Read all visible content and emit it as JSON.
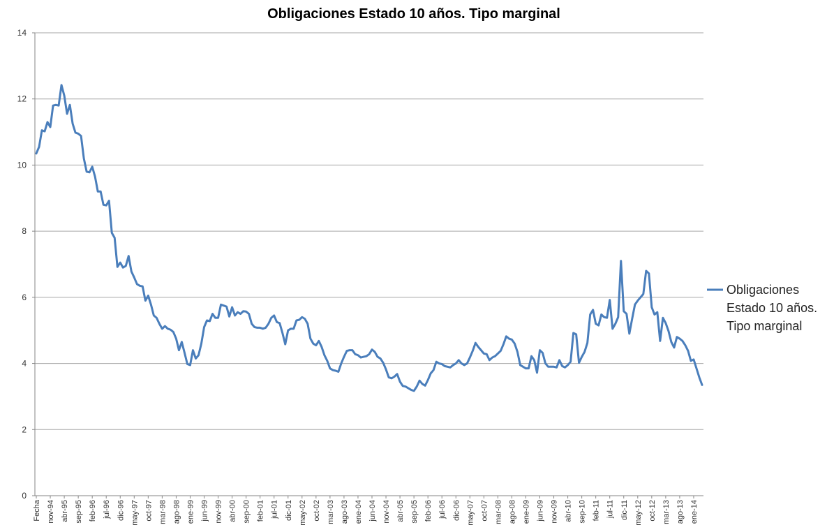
{
  "chart_data": {
    "type": "line",
    "title": "Obligaciones Estado 10 años. Tipo marginal",
    "xlabel": "",
    "ylabel": "",
    "ylim": [
      0,
      14
    ],
    "yticks": [
      "0",
      "2",
      "4",
      "6",
      "8",
      "10",
      "12",
      "14"
    ],
    "grid": true,
    "legend_position": "right",
    "line_color": "#4a7ebb",
    "x_tick_labels": [
      "Fecha",
      "nov-94",
      "abr-95",
      "sep-95",
      "feb-96",
      "jul-96",
      "dic-96",
      "may-97",
      "oct-97",
      "mar-98",
      "ago-98",
      "ene-99",
      "jun-99",
      "nov-99",
      "abr-00",
      "sep-00",
      "feb-01",
      "jul-01",
      "dic-01",
      "may-02",
      "oct-02",
      "mar-03",
      "ago-03",
      "ene-04",
      "jun-04",
      "nov-04",
      "abr-05",
      "sep-05",
      "feb-06",
      "jul-06",
      "dic-06",
      "may-07",
      "oct-07",
      "mar-08",
      "ago-08",
      "ene-09",
      "jun-09",
      "nov-09",
      "abr-10",
      "sep-10",
      "feb-11",
      "jul-11",
      "dic-11",
      "may-12",
      "oct-12",
      "mar-13",
      "ago-13",
      "ene-14"
    ],
    "series": [
      {
        "name": "Obligaciones Estado 10 años. Tipo marginal",
        "values": [
          10.35,
          10.55,
          11.05,
          11.02,
          11.3,
          11.15,
          11.8,
          11.82,
          11.8,
          12.42,
          12.1,
          11.55,
          11.82,
          11.25,
          10.98,
          10.95,
          10.88,
          10.2,
          9.8,
          9.78,
          9.95,
          9.65,
          9.2,
          9.2,
          8.8,
          8.78,
          8.92,
          7.95,
          7.8,
          6.92,
          7.05,
          6.9,
          6.95,
          7.25,
          6.78,
          6.6,
          6.4,
          6.35,
          6.33,
          5.9,
          6.05,
          5.78,
          5.45,
          5.38,
          5.2,
          5.05,
          5.13,
          5.05,
          5.02,
          4.95,
          4.75,
          4.4,
          4.65,
          4.32,
          3.98,
          3.95,
          4.4,
          4.15,
          4.25,
          4.6,
          5.1,
          5.3,
          5.28,
          5.5,
          5.38,
          5.38,
          5.78,
          5.75,
          5.72,
          5.42,
          5.7,
          5.45,
          5.55,
          5.5,
          5.58,
          5.57,
          5.5,
          5.2,
          5.1,
          5.08,
          5.08,
          5.05,
          5.08,
          5.2,
          5.38,
          5.45,
          5.25,
          5.22,
          4.92,
          4.58,
          5.0,
          5.05,
          5.05,
          5.3,
          5.32,
          5.4,
          5.35,
          5.2,
          4.75,
          4.6,
          4.55,
          4.68,
          4.5,
          4.25,
          4.08,
          3.85,
          3.8,
          3.78,
          3.75,
          4.0,
          4.2,
          4.38,
          4.4,
          4.4,
          4.28,
          4.25,
          4.18,
          4.2,
          4.22,
          4.28,
          4.42,
          4.35,
          4.2,
          4.15,
          4.02,
          3.82,
          3.58,
          3.55,
          3.6,
          3.68,
          3.45,
          3.32,
          3.3,
          3.25,
          3.2,
          3.17,
          3.3,
          3.48,
          3.38,
          3.33,
          3.5,
          3.7,
          3.8,
          4.05,
          4.0,
          3.98,
          3.92,
          3.9,
          3.88,
          3.95,
          4.0,
          4.1,
          4.0,
          3.95,
          4.0,
          4.18,
          4.38,
          4.62,
          4.5,
          4.4,
          4.3,
          4.28,
          4.1,
          4.18,
          4.22,
          4.3,
          4.38,
          4.58,
          4.82,
          4.75,
          4.72,
          4.6,
          4.35,
          3.95,
          3.9,
          3.85,
          3.85,
          4.22,
          4.1,
          3.72,
          4.4,
          4.32,
          4.0,
          3.9,
          3.9,
          3.9,
          3.88,
          4.1,
          3.92,
          3.88,
          3.95,
          4.05,
          4.92,
          4.88,
          4.02,
          4.2,
          4.35,
          4.62,
          5.48,
          5.62,
          5.2,
          5.15,
          5.48,
          5.4,
          5.38,
          5.92,
          5.05,
          5.2,
          5.4,
          7.1,
          5.58,
          5.5,
          4.9,
          5.35,
          5.78,
          5.9,
          6.0,
          6.1,
          6.8,
          6.72,
          5.7,
          5.48,
          5.55,
          4.68,
          5.38,
          5.22,
          4.98,
          4.65,
          4.48,
          4.8,
          4.75,
          4.68,
          4.55,
          4.38,
          4.08,
          4.12,
          3.85,
          3.58,
          3.35
        ]
      }
    ]
  }
}
